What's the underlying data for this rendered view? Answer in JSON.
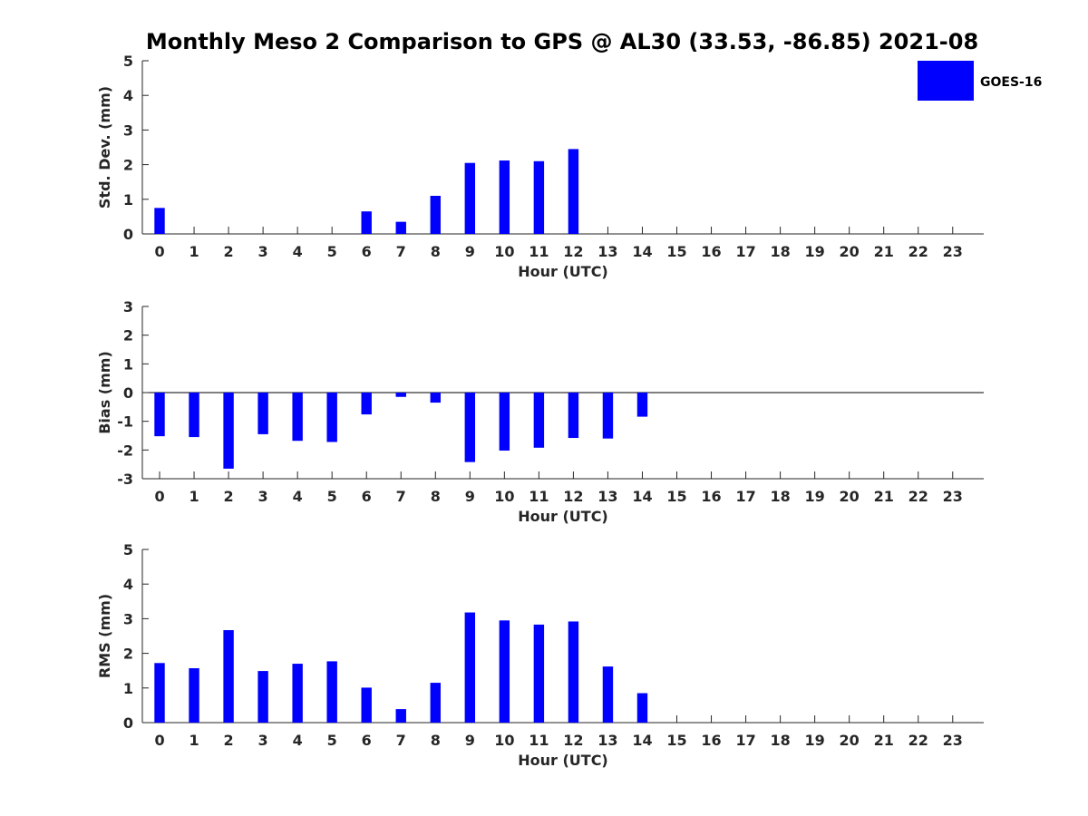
{
  "title": "Monthly Meso 2 Comparison to GPS @ AL30 (33.53, -86.85) 2021-08",
  "colors": {
    "bar": "#0000ff",
    "axis": "#262626"
  },
  "legend": {
    "label": "GOES-16",
    "placement": "top-right"
  },
  "chart_data": [
    {
      "type": "bar",
      "categories": [
        "0",
        "1",
        "2",
        "3",
        "4",
        "5",
        "6",
        "7",
        "8",
        "9",
        "10",
        "11",
        "12",
        "13",
        "14",
        "15",
        "16",
        "17",
        "18",
        "19",
        "20",
        "21",
        "22",
        "23"
      ],
      "series": [
        {
          "name": "GOES-16",
          "values": [
            0.75,
            0,
            0,
            0,
            0,
            0,
            0.65,
            0.35,
            1.1,
            2.05,
            2.12,
            2.1,
            2.45,
            0,
            0,
            0,
            0,
            0,
            0,
            0,
            0,
            0,
            0,
            0
          ]
        }
      ],
      "xlabel": "Hour (UTC)",
      "ylabel": "Std. Dev. (mm)",
      "ylim": [
        0,
        5
      ],
      "yticks": [
        "0",
        "1",
        "2",
        "3",
        "4",
        "5"
      ],
      "grid": false
    },
    {
      "type": "bar",
      "categories": [
        "0",
        "1",
        "2",
        "3",
        "4",
        "5",
        "6",
        "7",
        "8",
        "9",
        "10",
        "11",
        "12",
        "13",
        "14",
        "15",
        "16",
        "17",
        "18",
        "19",
        "20",
        "21",
        "22",
        "23"
      ],
      "series": [
        {
          "name": "GOES-16",
          "values": [
            -1.52,
            -1.55,
            -2.65,
            -1.45,
            -1.68,
            -1.72,
            -0.76,
            -0.15,
            -0.35,
            -2.42,
            -2.02,
            -1.92,
            -1.58,
            -1.6,
            -0.84,
            0,
            0,
            0,
            0,
            0,
            0,
            0,
            0,
            0
          ]
        }
      ],
      "xlabel": "Hour (UTC)",
      "ylabel": "Bias (mm)",
      "ylim": [
        -3,
        3
      ],
      "yticks": [
        "-3",
        "-2",
        "-1",
        "0",
        "1",
        "2",
        "3"
      ],
      "grid": false
    },
    {
      "type": "bar",
      "categories": [
        "0",
        "1",
        "2",
        "3",
        "4",
        "5",
        "6",
        "7",
        "8",
        "9",
        "10",
        "11",
        "12",
        "13",
        "14",
        "15",
        "16",
        "17",
        "18",
        "19",
        "20",
        "21",
        "22",
        "23"
      ],
      "series": [
        {
          "name": "GOES-16",
          "values": [
            1.72,
            1.57,
            2.67,
            1.49,
            1.7,
            1.77,
            1.01,
            0.39,
            1.15,
            3.18,
            2.95,
            2.83,
            2.92,
            1.62,
            0.85,
            0,
            0,
            0,
            0,
            0,
            0,
            0,
            0,
            0
          ]
        }
      ],
      "xlabel": "Hour (UTC)",
      "ylabel": "RMS (mm)",
      "ylim": [
        0,
        5
      ],
      "yticks": [
        "0",
        "1",
        "2",
        "3",
        "4",
        "5"
      ],
      "grid": false
    }
  ]
}
